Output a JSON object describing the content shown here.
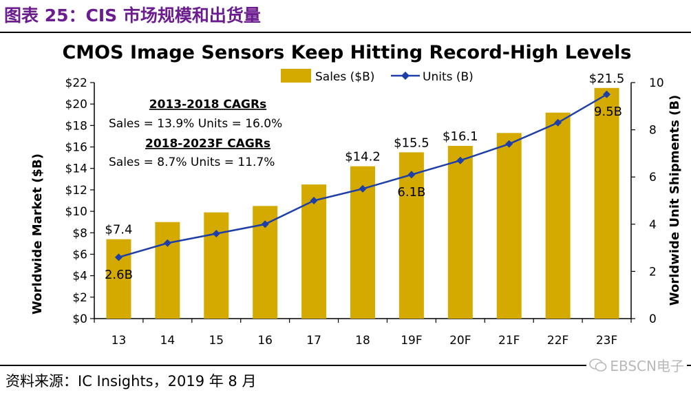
{
  "figure": {
    "title": "图表 25：CIS 市场规模和出货量",
    "source": "资料来源：IC Insights，2019 年 8 月",
    "watermark": "EBSCN电子"
  },
  "colors": {
    "title": "#6b1d8f",
    "bar": "#d4aa00",
    "line": "#1f3fa8"
  },
  "chart_data": {
    "type": "bar",
    "title": "CMOS Image Sensors Keep Hitting Record-High Levels",
    "categories": [
      "13",
      "14",
      "15",
      "16",
      "17",
      "18",
      "19F",
      "20F",
      "21F",
      "22F",
      "23F"
    ],
    "series": [
      {
        "name": "Sales ($B)",
        "type": "bar",
        "axis": "left",
        "values": [
          7.4,
          9.0,
          9.9,
          10.5,
          12.5,
          14.2,
          15.5,
          16.1,
          17.3,
          19.2,
          21.5
        ]
      },
      {
        "name": "Units (B)",
        "type": "line",
        "axis": "right",
        "values": [
          2.6,
          3.2,
          3.6,
          4.0,
          5.0,
          5.5,
          6.1,
          6.7,
          7.4,
          8.3,
          9.5
        ]
      }
    ],
    "ylabel": "Worldwide Market ($B)",
    "ylabel_right": "Worldwide Unit Shipments (B)",
    "ylim": [
      0,
      22
    ],
    "ylim_right": [
      0,
      10
    ],
    "yticks": [
      "$0",
      "$2",
      "$4",
      "$6",
      "$8",
      "$10",
      "$12",
      "$14",
      "$16",
      "$18",
      "$20",
      "$22"
    ],
    "yticks_right": [
      "0",
      "2",
      "4",
      "6",
      "8",
      "10"
    ],
    "legend": {
      "position": "top",
      "entries": [
        "Sales ($B)",
        "Units (B)"
      ]
    },
    "bar_labels": [
      {
        "index": 0,
        "text": "$7.4"
      },
      {
        "index": 5,
        "text": "$14.2"
      },
      {
        "index": 6,
        "text": "$15.5"
      },
      {
        "index": 7,
        "text": "$16.1"
      },
      {
        "index": 10,
        "text": "$21.5"
      }
    ],
    "line_labels": [
      {
        "index": 0,
        "text": "2.6B"
      },
      {
        "index": 6,
        "text": "6.1B"
      },
      {
        "index": 10,
        "text": "9.5B"
      }
    ],
    "annotations": {
      "cagr1_title": "2013-2018 CAGRs",
      "cagr1_text": "Sales = 13.9%  Units = 16.0%",
      "cagr2_title": "2018-2023F CAGRs",
      "cagr2_text": "Sales = 8.7%  Units = 11.7%"
    }
  }
}
